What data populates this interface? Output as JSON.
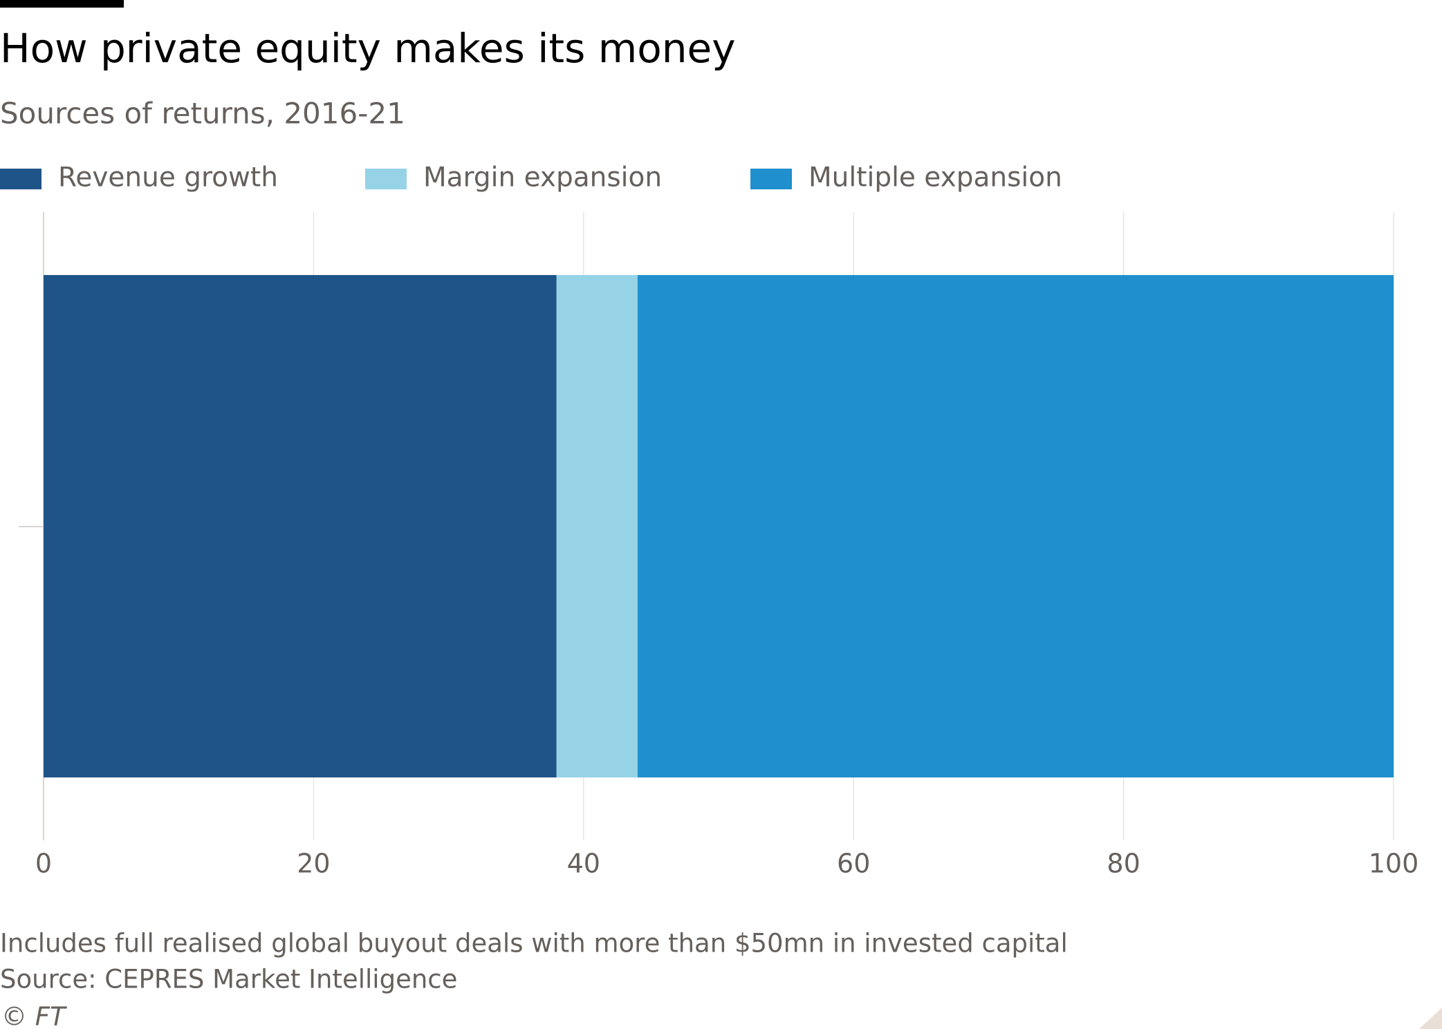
{
  "chart_data": {
    "type": "stacked-bar-horizontal",
    "title": "How private equity makes its money",
    "subtitle": "Sources of returns, 2016-21",
    "categories": [
      null
    ],
    "series": [
      {
        "name": "Revenue growth",
        "color": "#1f5489",
        "values": [
          38
        ]
      },
      {
        "name": "Margin expansion",
        "color": "#96d3e6",
        "values": [
          6
        ]
      },
      {
        "name": "Multiple expansion",
        "color": "#208fcd",
        "values": [
          56
        ]
      }
    ],
    "xlim": [
      0,
      100
    ],
    "xticks": [
      0,
      20,
      40,
      60,
      80,
      100
    ],
    "grid": true,
    "legend": "top",
    "notes": [
      "Includes full realised global buyout deals with more than $50mn in invested capital",
      "Source: CEPRES Market Intelligence"
    ],
    "credit": "© FT"
  }
}
